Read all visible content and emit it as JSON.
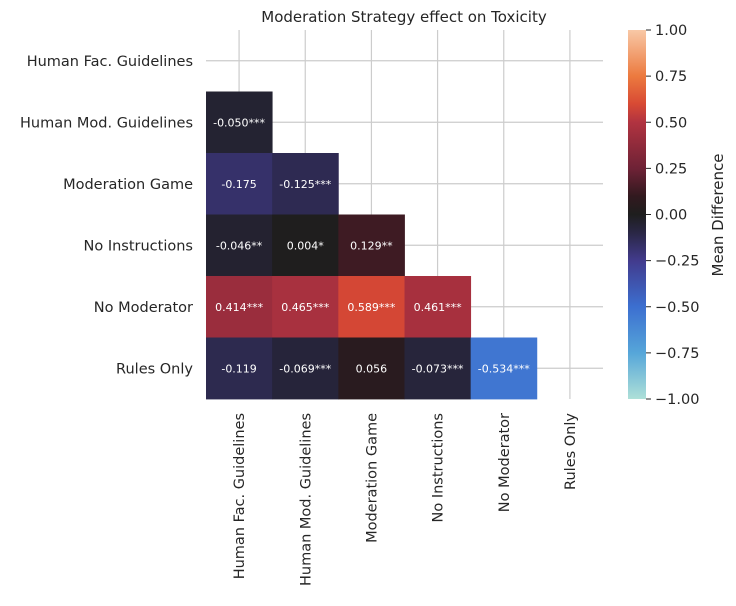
{
  "chart_data": {
    "type": "heatmap",
    "title": "Moderation Strategy effect on Toxicity",
    "xlabel": "",
    "ylabel": "",
    "categories": [
      "Human Fac. Guidelines",
      "Human Mod. Guidelines",
      "Moderation Game",
      "No Instructions",
      "No Moderator",
      "Rules Only"
    ],
    "grid": true,
    "mask": "upper-triangle",
    "cells": [
      {
        "row": 1,
        "col": 0,
        "value": -0.05,
        "label": "-0.050***"
      },
      {
        "row": 2,
        "col": 0,
        "value": -0.175,
        "label": "-0.175"
      },
      {
        "row": 2,
        "col": 1,
        "value": -0.125,
        "label": "-0.125***"
      },
      {
        "row": 3,
        "col": 0,
        "value": -0.046,
        "label": "-0.046**"
      },
      {
        "row": 3,
        "col": 1,
        "value": 0.004,
        "label": "0.004*"
      },
      {
        "row": 3,
        "col": 2,
        "value": 0.129,
        "label": "0.129**"
      },
      {
        "row": 4,
        "col": 0,
        "value": 0.414,
        "label": "0.414***"
      },
      {
        "row": 4,
        "col": 1,
        "value": 0.465,
        "label": "0.465***"
      },
      {
        "row": 4,
        "col": 2,
        "value": 0.589,
        "label": "0.589***"
      },
      {
        "row": 4,
        "col": 3,
        "value": 0.461,
        "label": "0.461***"
      },
      {
        "row": 5,
        "col": 0,
        "value": -0.119,
        "label": "-0.119"
      },
      {
        "row": 5,
        "col": 1,
        "value": -0.069,
        "label": "-0.069***"
      },
      {
        "row": 5,
        "col": 2,
        "value": 0.056,
        "label": "0.056"
      },
      {
        "row": 5,
        "col": 3,
        "value": -0.073,
        "label": "-0.073***"
      },
      {
        "row": 5,
        "col": 4,
        "value": -0.534,
        "label": "-0.534***"
      }
    ],
    "colorbar": {
      "label": "Mean Difference",
      "min": -1.0,
      "max": 1.0,
      "ticks": [
        1.0,
        0.75,
        0.5,
        0.25,
        0.0,
        -0.25,
        -0.5,
        -0.75,
        -1.0
      ],
      "tick_labels": [
        "1.00",
        "0.75",
        "0.50",
        "0.25",
        "0.00",
        "−0.25",
        "−0.50",
        "−0.75",
        "−1.00"
      ],
      "colormap": "icefire",
      "stops": [
        {
          "v": -1.0,
          "color": "#aee0d8"
        },
        {
          "v": -0.75,
          "color": "#56a6d9"
        },
        {
          "v": -0.5,
          "color": "#3c6fd0"
        },
        {
          "v": -0.25,
          "color": "#423b8d"
        },
        {
          "v": -0.1,
          "color": "#2a2746"
        },
        {
          "v": 0.0,
          "color": "#1e1e1e"
        },
        {
          "v": 0.1,
          "color": "#32191f"
        },
        {
          "v": 0.25,
          "color": "#6e2236"
        },
        {
          "v": 0.5,
          "color": "#b13340"
        },
        {
          "v": 0.6,
          "color": "#d84a34"
        },
        {
          "v": 0.75,
          "color": "#ec7a3f"
        },
        {
          "v": 1.0,
          "color": "#f8c8a6"
        }
      ]
    }
  }
}
